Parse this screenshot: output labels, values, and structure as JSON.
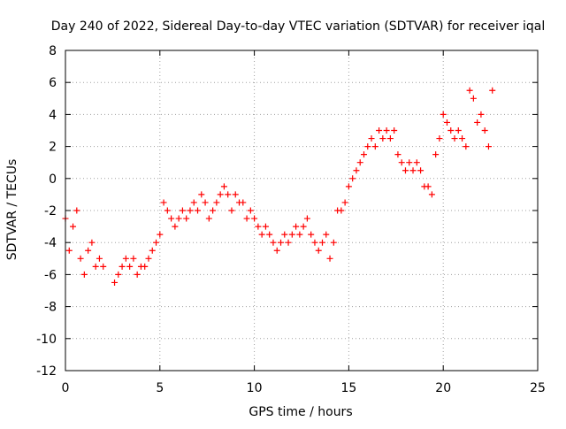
{
  "chart_data": {
    "type": "scatter",
    "title": "Day 240 of 2022, Sidereal Day-to-day VTEC variation (SDTVAR) for receiver iqal",
    "xlabel": "GPS time / hours",
    "ylabel": "SDTVAR / TECUs",
    "xlim": [
      0,
      25
    ],
    "ylim": [
      -12,
      8
    ],
    "xticks": [
      0,
      5,
      10,
      15,
      20,
      25
    ],
    "yticks": [
      -12,
      -10,
      -8,
      -6,
      -4,
      -2,
      0,
      2,
      4,
      6,
      8
    ],
    "grid": true,
    "marker": "+",
    "series": [
      {
        "name": "SDTVAR",
        "color": "#ff0000",
        "x": [
          0.0,
          0.2,
          0.4,
          0.6,
          0.8,
          1.0,
          1.2,
          1.4,
          1.6,
          1.8,
          2.0,
          2.6,
          2.8,
          3.0,
          3.2,
          3.4,
          3.6,
          3.8,
          4.0,
          4.2,
          4.4,
          4.6,
          4.8,
          5.0,
          5.2,
          5.4,
          5.6,
          5.8,
          6.0,
          6.2,
          6.4,
          6.6,
          6.8,
          7.0,
          7.2,
          7.4,
          7.6,
          7.8,
          8.0,
          8.2,
          8.4,
          8.6,
          8.8,
          9.0,
          9.2,
          9.4,
          9.6,
          9.8,
          10.0,
          10.2,
          10.4,
          10.6,
          10.8,
          11.0,
          11.2,
          11.4,
          11.6,
          11.8,
          12.0,
          12.2,
          12.4,
          12.6,
          12.8,
          13.0,
          13.2,
          13.4,
          13.6,
          13.8,
          14.0,
          14.2,
          14.4,
          14.6,
          14.8,
          15.0,
          15.2,
          15.4,
          15.6,
          15.8,
          16.0,
          16.2,
          16.4,
          16.6,
          16.8,
          17.0,
          17.2,
          17.4,
          17.6,
          17.8,
          18.0,
          18.2,
          18.4,
          18.6,
          18.8,
          19.0,
          19.2,
          19.4,
          19.6,
          19.8,
          20.0,
          20.2,
          20.4,
          20.6,
          20.8,
          21.0,
          21.2,
          21.4,
          21.6,
          21.8,
          22.0,
          22.2,
          22.4,
          22.6
        ],
        "y": [
          -2.5,
          -4.5,
          -3.0,
          -2.0,
          -5.0,
          -6.0,
          -4.5,
          -4.0,
          -5.5,
          -5.0,
          -5.5,
          -6.5,
          -6.0,
          -5.5,
          -5.0,
          -5.5,
          -5.0,
          -6.0,
          -5.5,
          -5.5,
          -5.0,
          -4.5,
          -4.0,
          -3.5,
          -1.5,
          -2.0,
          -2.5,
          -3.0,
          -2.5,
          -2.0,
          -2.5,
          -2.0,
          -1.5,
          -2.0,
          -1.0,
          -1.5,
          -2.5,
          -2.0,
          -1.5,
          -1.0,
          -0.5,
          -1.0,
          -2.0,
          -1.0,
          -1.5,
          -1.5,
          -2.5,
          -2.0,
          -2.5,
          -3.0,
          -3.5,
          -3.0,
          -3.5,
          -4.0,
          -4.5,
          -4.0,
          -3.5,
          -4.0,
          -3.5,
          -3.0,
          -3.5,
          -3.0,
          -2.5,
          -3.5,
          -4.0,
          -4.5,
          -4.0,
          -3.5,
          -5.0,
          -4.0,
          -2.0,
          -2.0,
          -1.5,
          -0.5,
          0.0,
          0.5,
          1.0,
          1.5,
          2.0,
          2.5,
          2.0,
          3.0,
          2.5,
          3.0,
          2.5,
          3.0,
          1.5,
          1.0,
          0.5,
          1.0,
          0.5,
          1.0,
          0.5,
          -0.5,
          -0.5,
          -1.0,
          1.5,
          2.5,
          4.0,
          3.5,
          3.0,
          2.5,
          3.0,
          2.5,
          2.0,
          5.5,
          5.0,
          3.5,
          4.0,
          3.0,
          2.0,
          5.5
        ]
      }
    ],
    "annotations": []
  }
}
